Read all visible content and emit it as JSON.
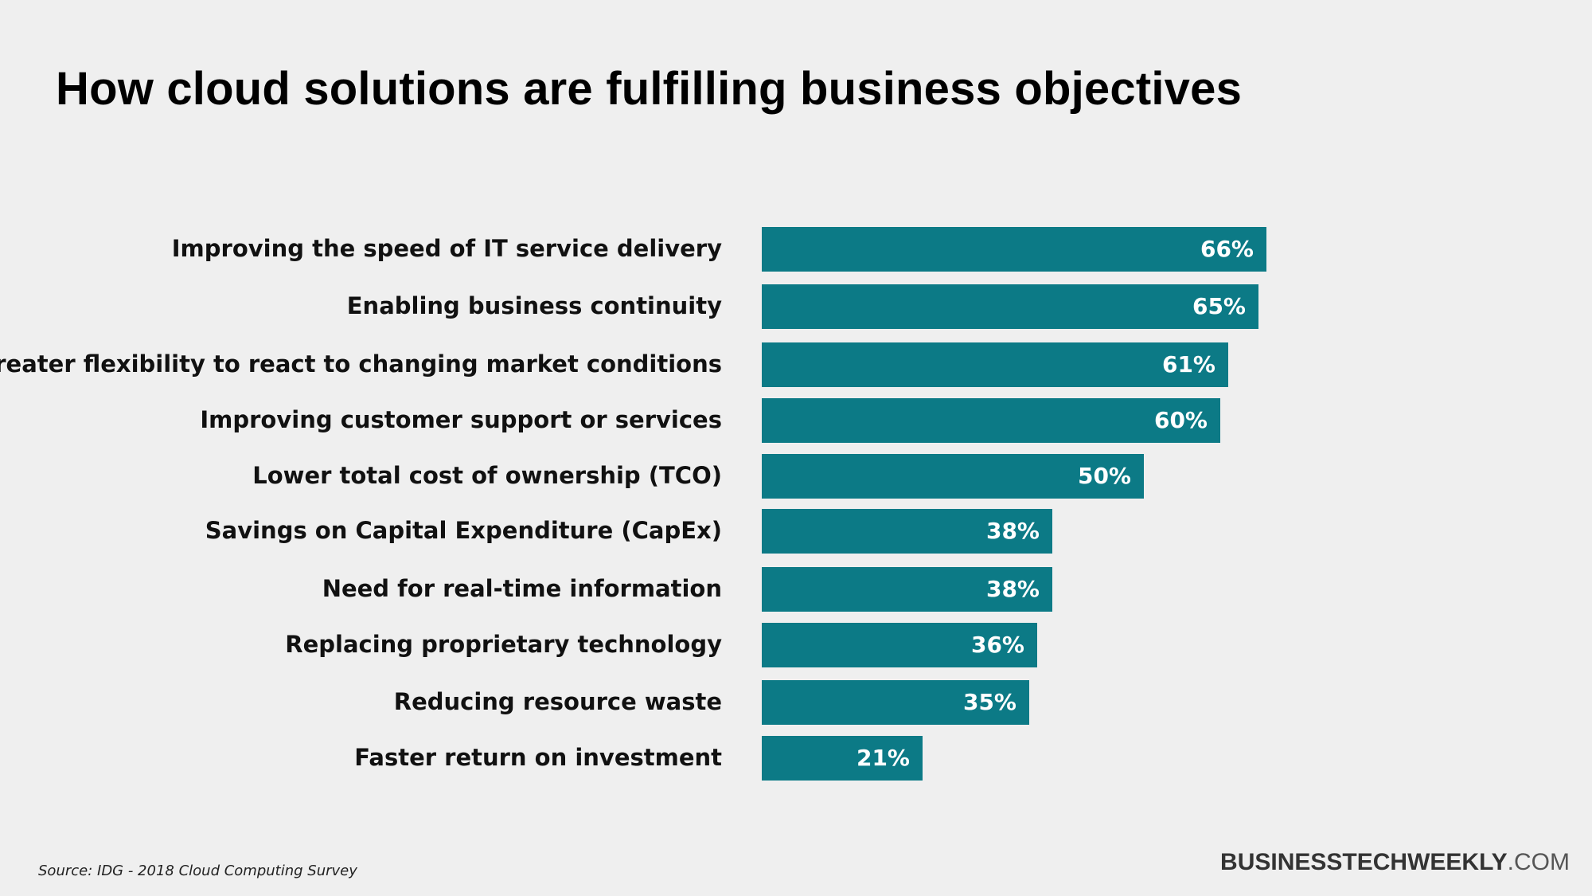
{
  "title": "How cloud solutions are fulfilling business objectives",
  "chart_data": {
    "type": "bar",
    "orientation": "horizontal",
    "categories": [
      "Improving the speed of IT service delivery",
      "Enabling business continuity",
      "Greater flexibility to react to changing market conditions",
      "Improving customer support or services",
      "Lower total cost of ownership (TCO)",
      "Savings on Capital Expenditure (CapEx)",
      "Need for real-time information",
      "Replacing proprietary technology",
      "Reducing resource waste",
      "Faster return on investment"
    ],
    "values": [
      66,
      65,
      61,
      60,
      50,
      38,
      38,
      36,
      35,
      21
    ],
    "value_labels": [
      "66%",
      "65%",
      "61%",
      "60%",
      "50%",
      "38%",
      "38%",
      "36%",
      "35%",
      "21%"
    ],
    "bar_color": "#0c7a86",
    "value_label_color": "#ffffff",
    "grid": false,
    "legend": "none"
  },
  "footer": {
    "source": "Source: IDG - 2018 Cloud Computing Survey",
    "brand_bold": "BUSINESSTECHWEEKLY",
    "brand_light": ".COM"
  }
}
